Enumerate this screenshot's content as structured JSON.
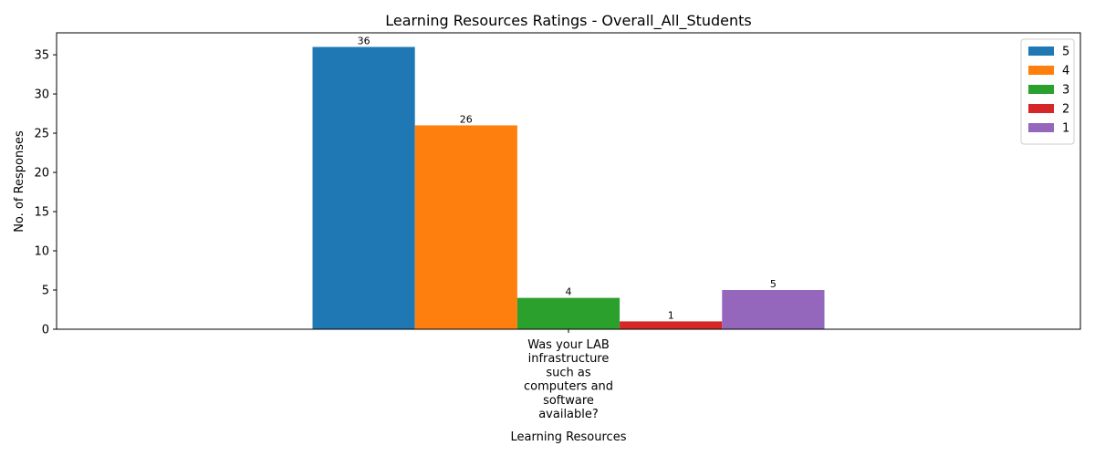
{
  "chart_data": {
    "type": "bar",
    "title": "Learning Resources Ratings - Overall_All_Students",
    "xlabel": "Learning Resources",
    "ylabel": "No. of Responses",
    "categories": [
      "Was your LAB infrastructure such as computers and software available?"
    ],
    "category_label_lines": [
      "Was your LAB",
      "infrastructure",
      "such as",
      "computers and",
      "software",
      "available?"
    ],
    "ylim": [
      0,
      37.8
    ],
    "yticks": [
      0,
      5,
      10,
      15,
      20,
      25,
      30,
      35
    ],
    "grid": false,
    "legend_position": "top-right",
    "series": [
      {
        "name": "5",
        "values": [
          36
        ],
        "color": "#1f77b4"
      },
      {
        "name": "4",
        "values": [
          26
        ],
        "color": "#ff7f0e"
      },
      {
        "name": "3",
        "values": [
          4
        ],
        "color": "#2ca02c"
      },
      {
        "name": "2",
        "values": [
          1
        ],
        "color": "#d62728"
      },
      {
        "name": "1",
        "values": [
          5
        ],
        "color": "#9467bd"
      }
    ]
  }
}
